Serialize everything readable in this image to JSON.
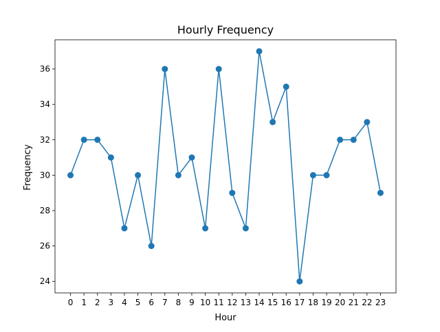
{
  "chart_data": {
    "type": "line",
    "title": "Hourly Frequency",
    "xlabel": "Hour",
    "ylabel": "Frequency",
    "x": [
      0,
      1,
      2,
      3,
      4,
      5,
      6,
      7,
      8,
      9,
      10,
      11,
      12,
      13,
      14,
      15,
      16,
      17,
      18,
      19,
      20,
      21,
      22,
      23
    ],
    "series": [
      {
        "values": [
          30,
          32,
          32,
          31,
          27,
          30,
          26,
          36,
          30,
          31,
          27,
          36,
          29,
          27,
          37,
          33,
          35,
          24,
          30,
          30,
          32,
          32,
          33,
          29
        ],
        "color": "#1f77b4",
        "marker": "circle"
      }
    ],
    "xlim": [
      -1.15,
      24.15
    ],
    "ylim": [
      23.35,
      37.65
    ],
    "xticks": [
      0,
      1,
      2,
      3,
      4,
      5,
      6,
      7,
      8,
      9,
      10,
      11,
      12,
      13,
      14,
      15,
      16,
      17,
      18,
      19,
      20,
      21,
      22,
      23
    ],
    "yticks": [
      24,
      26,
      28,
      30,
      32,
      34,
      36
    ],
    "grid": false,
    "legend": false
  }
}
